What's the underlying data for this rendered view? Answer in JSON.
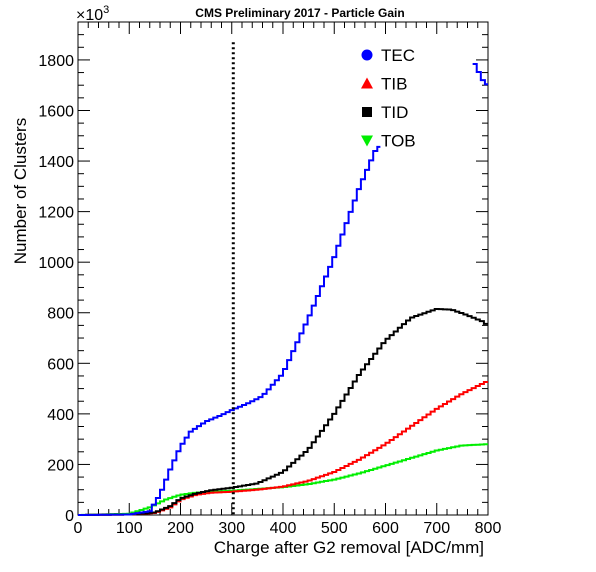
{
  "chart_data": {
    "type": "line",
    "title": "CMS Preliminary 2017  -  Particle Gain",
    "xlabel": "Charge after G2 removal [ADC/mm]",
    "ylabel": "Number of Clusters",
    "yexponent_base": "×10",
    "yexponent_power": "3",
    "xlim": [
      0,
      800
    ],
    "ylim": [
      0,
      1950
    ],
    "xticks": [
      0,
      100,
      200,
      300,
      400,
      500,
      600,
      700,
      800
    ],
    "yticks": [
      0,
      200,
      400,
      600,
      800,
      1000,
      1200,
      1400,
      1600,
      1800
    ],
    "vline_x": 303,
    "legend_position": "top-right",
    "series": [
      {
        "name": "TEC",
        "color": "#0000ff",
        "marker": "circle",
        "x": [
          0,
          100,
          140,
          160,
          180,
          200,
          220,
          250,
          280,
          300,
          330,
          360,
          400,
          450,
          500,
          550,
          580,
          590
        ],
        "y": [
          0,
          2,
          15,
          80,
          180,
          270,
          330,
          370,
          395,
          415,
          440,
          470,
          560,
          780,
          1020,
          1300,
          1440,
          1460
        ],
        "x2": [
          770,
          780,
          790,
          800
        ],
        "y2": [
          1800,
          1760,
          1720,
          1700
        ]
      },
      {
        "name": "TIB",
        "color": "#ff0000",
        "marker": "triangle-up",
        "x": [
          0,
          100,
          150,
          180,
          200,
          230,
          260,
          300,
          350,
          400,
          450,
          500,
          550,
          600,
          650,
          700,
          750,
          800
        ],
        "y": [
          0,
          2,
          8,
          30,
          60,
          80,
          88,
          92,
          100,
          112,
          135,
          170,
          220,
          280,
          350,
          420,
          480,
          530
        ]
      },
      {
        "name": "TID",
        "color": "#000000",
        "marker": "square",
        "x": [
          0,
          100,
          150,
          180,
          200,
          230,
          260,
          300,
          350,
          400,
          450,
          500,
          550,
          600,
          650,
          700,
          730,
          760,
          790,
          800
        ],
        "y": [
          0,
          2,
          10,
          35,
          65,
          85,
          98,
          108,
          125,
          170,
          260,
          400,
          560,
          690,
          780,
          815,
          812,
          790,
          765,
          750
        ]
      },
      {
        "name": "TOB",
        "color": "#00ee00",
        "marker": "triangle-down",
        "x": [
          0,
          100,
          140,
          170,
          200,
          230,
          260,
          300,
          350,
          400,
          450,
          500,
          550,
          600,
          650,
          700,
          750,
          800
        ],
        "y": [
          0,
          5,
          30,
          60,
          80,
          88,
          92,
          96,
          103,
          110,
          122,
          140,
          165,
          195,
          225,
          255,
          275,
          280
        ]
      }
    ]
  }
}
